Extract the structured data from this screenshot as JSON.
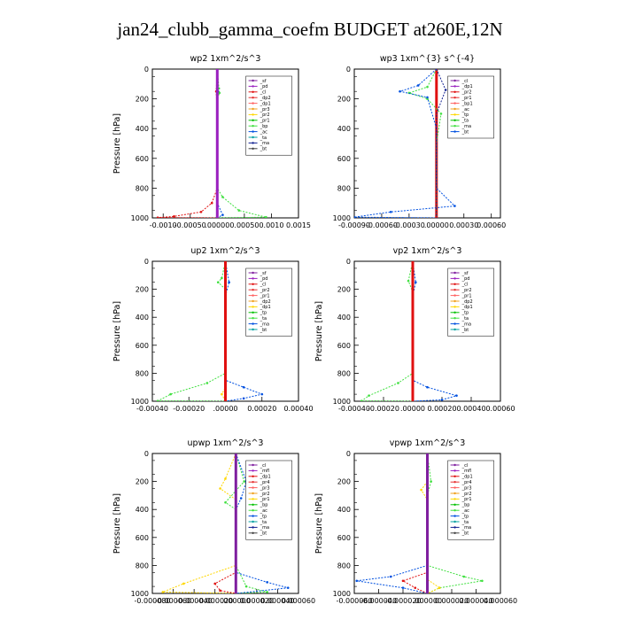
{
  "figure": {
    "title": "jan24_clubb_gamma_coefm  BUDGET at260E,12N"
  },
  "colors": [
    "#7f1f9f",
    "#9a1fbf",
    "#e01010",
    "#e63030",
    "#ff6060",
    "#f0a020",
    "#ffd700",
    "#00c000",
    "#40e040",
    "#0050e0",
    "#00a0a0",
    "#102090",
    "#404040",
    "#00ffff",
    "#ff9000",
    "#ff00ff"
  ],
  "chart_data": [
    {
      "type": "line",
      "title": "wp2   1xm^2/s^3",
      "ylabel": "Pressure [hPa]",
      "xlim": [
        -0.0012,
        0.0015
      ],
      "ylim": [
        1000,
        0
      ],
      "xticks": [
        -0.001,
        -0.0005,
        0,
        0.0005,
        0.001,
        0.0015
      ],
      "xtick_labels": [
        "-0.0010",
        "-0.00050",
        ".00000",
        "0.00050",
        "0.0010",
        "0.0015"
      ],
      "yticks": [
        0,
        200,
        400,
        600,
        800,
        1000
      ],
      "legend": [
        "_sf",
        "_pd",
        "_cl",
        "_dp2",
        "_dp1",
        "_pr3",
        "_pr2",
        "_pr1",
        "_bp",
        "_ac",
        "_ta",
        "_ma",
        "_bt"
      ],
      "series": [
        {
          "name": "_dp1",
          "color": "#e01010",
          "values": [
            [
              0,
              0
            ],
            [
              -2e-05,
              150
            ],
            [
              0,
              300
            ],
            [
              0,
              800
            ],
            [
              -0.0001,
              900
            ],
            [
              -0.0003,
              960
            ],
            [
              -0.0008,
              990
            ],
            [
              -0.0011,
              998
            ],
            [
              0,
              1000
            ]
          ]
        },
        {
          "name": "_pr1",
          "color": "#40e040",
          "values": [
            [
              0,
              0
            ],
            [
              3e-05,
              130
            ],
            [
              4e-05,
              160
            ],
            [
              0,
              200
            ],
            [
              0,
              800
            ],
            [
              0.0001,
              860
            ],
            [
              0.0004,
              950
            ],
            [
              0.0009,
              995
            ],
            [
              0,
              1000
            ]
          ]
        },
        {
          "name": "_bp",
          "color": "#0050e0",
          "values": [
            [
              0,
              0
            ],
            [
              1e-05,
              150
            ],
            [
              0,
              300
            ],
            [
              0,
              900
            ],
            [
              0.0001,
              980
            ],
            [
              0,
              1000
            ]
          ]
        },
        {
          "name": "_sf",
          "color": "#9a1fbf",
          "values": [
            [
              0,
              0
            ],
            [
              0,
              1000
            ]
          ]
        }
      ]
    },
    {
      "type": "line",
      "title": "wp3   1xm^{3} s^{-4}",
      "ylabel": "",
      "xlim": [
        -0.0009,
        0.0007
      ],
      "ylim": [
        1000,
        0
      ],
      "xticks": [
        -0.0009,
        -0.0006,
        -0.0003,
        0,
        0.0003,
        0.0006
      ],
      "xtick_labels": [
        "-0.00090",
        "-0.00060",
        "-0.00030",
        ".00000",
        "0.00030",
        "0.00060"
      ],
      "yticks": [
        0,
        200,
        400,
        600,
        800,
        1000
      ],
      "legend": [
        "_cl",
        "_dp1",
        "_pr2",
        "_pr1",
        "_bp1",
        "_ac",
        "_tp",
        "_ta",
        "_ma",
        "_bt"
      ],
      "series": [
        {
          "name": "_dp1",
          "color": "#e01010",
          "values": [
            [
              0,
              0
            ],
            [
              0,
              1000
            ]
          ]
        },
        {
          "name": "_bp1",
          "color": "#40e040",
          "values": [
            [
              0,
              0
            ],
            [
              -0.0001,
              120
            ],
            [
              -0.0003,
              160
            ],
            [
              -0.0001,
              200
            ],
            [
              5e-05,
              300
            ],
            [
              0,
              500
            ],
            [
              0,
              1000
            ]
          ]
        },
        {
          "name": "_tp",
          "color": "#0050e0",
          "values": [
            [
              0,
              0
            ],
            [
              -0.0002,
              110
            ],
            [
              -0.0004,
              150
            ],
            [
              -0.0001,
              190
            ],
            [
              0,
              400
            ],
            [
              0,
              800
            ],
            [
              0.0002,
              920
            ],
            [
              -0.0005,
              960
            ],
            [
              -0.0009,
              995
            ],
            [
              0,
              1000
            ]
          ]
        },
        {
          "name": "_ma",
          "color": "#102090",
          "values": [
            [
              0,
              0
            ],
            [
              0.0001,
              140
            ],
            [
              0,
              300
            ],
            [
              0,
              1000
            ]
          ]
        }
      ]
    },
    {
      "type": "line",
      "title": "up2   1xm^2/s^3",
      "ylabel": "Pressure [hPa]",
      "xlim": [
        -0.0004,
        0.0004
      ],
      "ylim": [
        1000,
        0
      ],
      "xticks": [
        -0.0004,
        -0.0002,
        0,
        0.0002,
        0.0004
      ],
      "xtick_labels": [
        "-0.00040",
        "-0.00020",
        ".00000",
        "0.00020",
        "0.00040"
      ],
      "yticks": [
        0,
        200,
        400,
        600,
        800,
        1000
      ],
      "legend": [
        "_sf",
        "_pd",
        "_cl",
        "_pr2",
        "_pr1",
        "_dp2",
        "_dp1",
        "_tp",
        "_ta",
        "_ma",
        "_bt"
      ],
      "series": [
        {
          "name": "_dp1",
          "color": "#40e040",
          "values": [
            [
              0,
              0
            ],
            [
              -2e-05,
              120
            ],
            [
              -4e-05,
              150
            ],
            [
              0,
              200
            ],
            [
              0,
              800
            ],
            [
              -0.0001,
              870
            ],
            [
              -0.0003,
              950
            ],
            [
              -0.00037,
              998
            ],
            [
              0,
              1000
            ]
          ]
        },
        {
          "name": "_tp",
          "color": "#0050e0",
          "values": [
            [
              0,
              0
            ],
            [
              2e-05,
              150
            ],
            [
              0,
              250
            ],
            [
              0,
              850
            ],
            [
              0.0001,
              900
            ],
            [
              0.0002,
              950
            ],
            [
              0.0001,
              980
            ],
            [
              0,
              1000
            ]
          ]
        },
        {
          "name": "_pr1",
          "color": "#ffd700",
          "values": [
            [
              0,
              0
            ],
            [
              0,
              900
            ],
            [
              -2e-05,
              950
            ],
            [
              0,
              1000
            ]
          ]
        },
        {
          "name": "_cl",
          "color": "#e01010",
          "values": [
            [
              0,
              0
            ],
            [
              0,
              1000
            ]
          ]
        }
      ]
    },
    {
      "type": "line",
      "title": "vp2   1xm^2/s^3",
      "ylabel": "Pressure [hPa]",
      "xlim": [
        -0.0004,
        0.0006
      ],
      "ylim": [
        1000,
        0
      ],
      "xticks": [
        -0.0004,
        -0.0002,
        0,
        0.0002,
        0.0004,
        0.0006
      ],
      "xtick_labels": [
        "-0.00040",
        "-0.00020",
        ".00000",
        "0.00020",
        "0.00040",
        "0.00060"
      ],
      "yticks": [
        0,
        200,
        400,
        600,
        800,
        1000
      ],
      "legend": [
        "_sf",
        "_pd",
        "_cl",
        "_pr2",
        "_pr1",
        "_dp2",
        "_dp1",
        "_tp",
        "_ta",
        "_ma",
        "_bt"
      ],
      "series": [
        {
          "name": "_dp1",
          "color": "#40e040",
          "values": [
            [
              0,
              0
            ],
            [
              -3e-05,
              140
            ],
            [
              0,
              220
            ],
            [
              0,
              800
            ],
            [
              -0.0001,
              870
            ],
            [
              -0.0003,
              960
            ],
            [
              -0.00035,
              998
            ],
            [
              0,
              1000
            ]
          ]
        },
        {
          "name": "_tp",
          "color": "#0050e0",
          "values": [
            [
              0,
              0
            ],
            [
              2e-05,
              150
            ],
            [
              0,
              250
            ],
            [
              0,
              850
            ],
            [
              0.0001,
              900
            ],
            [
              0.0003,
              960
            ],
            [
              0.0002,
              990
            ],
            [
              0,
              1000
            ]
          ]
        },
        {
          "name": "_cl",
          "color": "#e01010",
          "values": [
            [
              0,
              0
            ],
            [
              0,
              1000
            ]
          ]
        }
      ]
    },
    {
      "type": "line",
      "title": "upwp   1xm^2/s^3",
      "ylabel": "Pressure [hPa]",
      "xlim": [
        -8e-05,
        6e-05
      ],
      "ylim": [
        1000,
        0
      ],
      "xticks": [
        -8e-05,
        -6e-05,
        -4e-05,
        -2e-05,
        0,
        2e-05,
        4e-05,
        6e-05
      ],
      "xtick_labels": [
        "-0.000080",
        "-0.000060",
        "-0.000040",
        "-0.000020",
        ".000000",
        "0.000020",
        "0.000040",
        "0.000060"
      ],
      "yticks": [
        0,
        200,
        400,
        600,
        800,
        1000
      ],
      "legend": [
        "_cl",
        "_mfl",
        "_dp1",
        "_pr4",
        "_pr3",
        "_pr2",
        "_pr1",
        "_bp",
        "_ac",
        "_tp",
        "_ta",
        "_ma",
        "_bt"
      ],
      "series": [
        {
          "name": "_pr1",
          "color": "#ffd700",
          "values": [
            [
              0,
              0
            ],
            [
              -1e-05,
              180
            ],
            [
              -1.5e-05,
              250
            ],
            [
              0,
              330
            ],
            [
              0,
              800
            ],
            [
              -5e-05,
              930
            ],
            [
              -7e-05,
              990
            ],
            [
              0,
              1000
            ]
          ]
        },
        {
          "name": "_bp",
          "color": "#40e040",
          "values": [
            [
              0,
              0
            ],
            [
              8e-06,
              200
            ],
            [
              -1e-05,
              350
            ],
            [
              0,
              400
            ],
            [
              0,
              800
            ],
            [
              1e-05,
              950
            ],
            [
              3e-05,
              990
            ],
            [
              0,
              1000
            ]
          ]
        },
        {
          "name": "_tp",
          "color": "#0050e0",
          "values": [
            [
              0,
              0
            ],
            [
              1e-05,
              200
            ],
            [
              5e-06,
              320
            ],
            [
              0,
              400
            ],
            [
              0,
              850
            ],
            [
              3e-05,
              920
            ],
            [
              5e-05,
              960
            ],
            [
              0,
              1000
            ]
          ]
        },
        {
          "name": "_dp1",
          "color": "#e01010",
          "values": [
            [
              0,
              0
            ],
            [
              0,
              850
            ],
            [
              -2e-05,
              930
            ],
            [
              -1.5e-05,
              980
            ],
            [
              0,
              1000
            ]
          ]
        },
        {
          "name": "_cl",
          "color": "#7f1f9f",
          "values": [
            [
              0,
              0
            ],
            [
              0,
              1000
            ]
          ]
        }
      ]
    },
    {
      "type": "line",
      "title": "vpwp   1xm^2/s^3",
      "ylabel": "Pressure [hPa]",
      "xlim": [
        -6e-05,
        6e-05
      ],
      "ylim": [
        1000,
        0
      ],
      "xticks": [
        -6e-05,
        -4e-05,
        -2e-05,
        0,
        2e-05,
        4e-05,
        6e-05
      ],
      "xtick_labels": [
        "-0.000060",
        "-0.000040",
        "-0.000020",
        ".000000",
        "0.000020",
        "0.000040",
        "0.000060"
      ],
      "yticks": [
        0,
        200,
        400,
        600,
        800,
        1000
      ],
      "legend": [
        "_cl",
        "_mfl",
        "_dp1",
        "_pr4",
        "_pr3",
        "_pr2",
        "_pr1",
        "_bp",
        "_ac",
        "_tp",
        "_ta",
        "_ma",
        "_bt"
      ],
      "series": [
        {
          "name": "_tp",
          "color": "#0050e0",
          "values": [
            [
              0,
              0
            ],
            [
              0,
              800
            ],
            [
              -3e-05,
              880
            ],
            [
              -5.8e-05,
              910
            ],
            [
              -2e-05,
              960
            ],
            [
              0,
              1000
            ]
          ]
        },
        {
          "name": "_bp",
          "color": "#40e040",
          "values": [
            [
              0,
              0
            ],
            [
              3e-06,
              200
            ],
            [
              0,
              300
            ],
            [
              0,
              800
            ],
            [
              3e-05,
              880
            ],
            [
              4.5e-05,
              910
            ],
            [
              1e-05,
              960
            ],
            [
              0,
              1000
            ]
          ]
        },
        {
          "name": "_dp1",
          "color": "#e01010",
          "values": [
            [
              0,
              0
            ],
            [
              0,
              850
            ],
            [
              -2e-05,
              910
            ],
            [
              -1e-05,
              960
            ],
            [
              0,
              1000
            ]
          ]
        },
        {
          "name": "_pr1",
          "color": "#ffd700",
          "values": [
            [
              0,
              0
            ],
            [
              0,
              200
            ],
            [
              -5e-06,
              260
            ],
            [
              0,
              330
            ],
            [
              0,
              900
            ],
            [
              1e-05,
              960
            ],
            [
              0,
              1000
            ]
          ]
        },
        {
          "name": "_cl",
          "color": "#7f1f9f",
          "values": [
            [
              0,
              0
            ],
            [
              0,
              1000
            ]
          ]
        }
      ]
    }
  ]
}
